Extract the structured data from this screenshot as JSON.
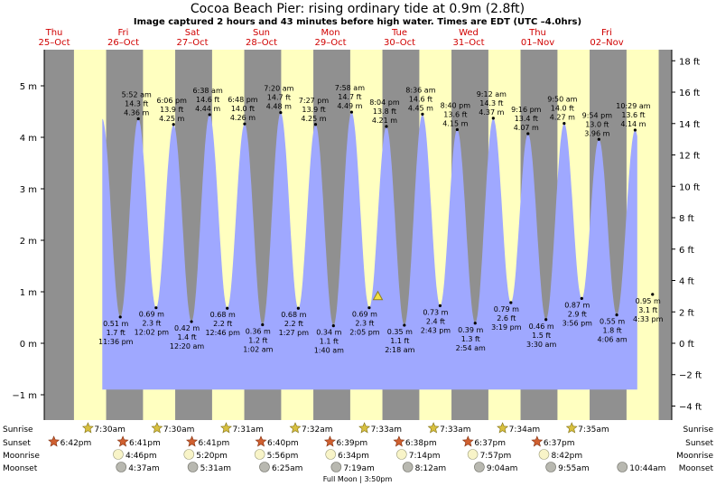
{
  "chart_data": {
    "type": "area",
    "title": "Cocoa Beach Pier: rising  ordinary tide at 0.9m (2.8ft)",
    "subtitle": "Image captured 2 hours and 43 minutes before high water. Times are EDT (UTC –4.0hrs)",
    "days": [
      {
        "dow": "Thu",
        "date": "25–Oct"
      },
      {
        "dow": "Fri",
        "date": "26–Oct"
      },
      {
        "dow": "Sat",
        "date": "27–Oct"
      },
      {
        "dow": "Sun",
        "date": "28–Oct"
      },
      {
        "dow": "Mon",
        "date": "29–Oct"
      },
      {
        "dow": "Tue",
        "date": "30–Oct"
      },
      {
        "dow": "Wed",
        "date": "31–Oct"
      },
      {
        "dow": "Thu",
        "date": "01–Nov"
      },
      {
        "dow": "Fri",
        "date": "02–Nov"
      }
    ],
    "y_left": {
      "unit": "m",
      "range": [
        -1.25,
        5.7
      ],
      "ticks": [
        "−1 m",
        "0 m",
        "1 m",
        "2 m",
        "3 m",
        "4 m",
        "5 m"
      ]
    },
    "y_right": {
      "unit": "ft",
      "ticks": [
        "−4 ft",
        "−2 ft",
        "0 ft",
        "2 ft",
        "4 ft",
        "6 ft",
        "8 ft",
        "10 ft",
        "12 ft",
        "14 ft",
        "16 ft",
        "18 ft"
      ]
    },
    "high_tides": [
      {
        "time": "5:52 am",
        "ft": "14.3 ft",
        "m": "4.36 m"
      },
      {
        "time": "6:06 pm",
        "ft": "13.9 ft",
        "m": "4.25 m"
      },
      {
        "time": "6:38 am",
        "ft": "14.6 ft",
        "m": "4.44 m"
      },
      {
        "time": "6:48 pm",
        "ft": "14.0 ft",
        "m": "4.26 m"
      },
      {
        "time": "7:20 am",
        "ft": "14.7 ft",
        "m": "4.48 m"
      },
      {
        "time": "7:27 pm",
        "ft": "13.9 ft",
        "m": "4.25 m"
      },
      {
        "time": "7:58 am",
        "ft": "14.7 ft",
        "m": "4.49 m"
      },
      {
        "time": "8:04 pm",
        "ft": "13.8 ft",
        "m": "4.21 m"
      },
      {
        "time": "8:36 am",
        "ft": "14.6 ft",
        "m": "4.45 m"
      },
      {
        "time": "8:40 pm",
        "ft": "13.6 ft",
        "m": "4.15 m"
      },
      {
        "time": "9:12 am",
        "ft": "14.3 ft",
        "m": "4.37 m"
      },
      {
        "time": "9:16 pm",
        "ft": "13.4 ft",
        "m": "4.07 m"
      },
      {
        "time": "9:50 am",
        "ft": "14.0 ft",
        "m": "4.27 m"
      },
      {
        "time": "9:54 pm",
        "ft": "13.0 ft",
        "m": "3.96 m"
      },
      {
        "time": "10:29 am",
        "ft": "13.6 ft",
        "m": "4.14 m"
      }
    ],
    "low_tides": [
      {
        "m": "0.51 m",
        "ft": "1.7 ft",
        "time": "11:36 pm"
      },
      {
        "m": "0.69 m",
        "ft": "2.3 ft",
        "time": "12:02 pm"
      },
      {
        "m": "0.42 m",
        "ft": "1.4 ft",
        "time": "12:20 am"
      },
      {
        "m": "0.68 m",
        "ft": "2.2 ft",
        "time": "12:46 pm"
      },
      {
        "m": "0.36 m",
        "ft": "1.2 ft",
        "time": "1:02 am"
      },
      {
        "m": "0.68 m",
        "ft": "2.2 ft",
        "time": "1:27 pm"
      },
      {
        "m": "0.34 m",
        "ft": "1.1 ft",
        "time": "1:40 am"
      },
      {
        "m": "0.69 m",
        "ft": "2.3 ft",
        "time": "2:05 pm"
      },
      {
        "m": "0.35 m",
        "ft": "1.1 ft",
        "time": "2:18 am"
      },
      {
        "m": "0.73 m",
        "ft": "2.4 ft",
        "time": "2:43 pm"
      },
      {
        "m": "0.39 m",
        "ft": "1.3 ft",
        "time": "2:54 am"
      },
      {
        "m": "0.79 m",
        "ft": "2.6 ft",
        "time": "3:19 pm"
      },
      {
        "m": "0.46 m",
        "ft": "1.5 ft",
        "time": "3:30 am"
      },
      {
        "m": "0.87 m",
        "ft": "2.9 ft",
        "time": "3:56 pm"
      },
      {
        "m": "0.55 m",
        "ft": "1.8 ft",
        "time": "4:06 am"
      },
      {
        "m": "0.95 m",
        "ft": "3.1 ft",
        "time": "4:33 pm"
      }
    ],
    "row_labels": [
      "Sunrise",
      "Sunset",
      "Moonrise",
      "Moonset"
    ],
    "sunrise": [
      "7:30am",
      "7:30am",
      "7:31am",
      "7:32am",
      "7:33am",
      "7:33am",
      "7:34am",
      "7:35am"
    ],
    "sunset": [
      "6:42pm",
      "6:41pm",
      "6:41pm",
      "6:40pm",
      "6:39pm",
      "6:38pm",
      "6:37pm",
      "6:37pm"
    ],
    "moonrise": [
      "4:46pm",
      "5:20pm",
      "5:56pm",
      "6:34pm",
      "7:14pm",
      "7:57pm",
      "8:42pm"
    ],
    "moonset": [
      "4:37am",
      "5:31am",
      "6:25am",
      "7:19am",
      "8:12am",
      "9:04am",
      "9:55am",
      "10:44am"
    ],
    "moon_phase": "Full Moon | 3:50pm",
    "colors": {
      "day": "#ffffc0",
      "night": "#909090",
      "water": "#9fa8ff",
      "day_label": "#d00000",
      "sun": "#d8c040",
      "sunset": "#d06030",
      "moon": "#f8f4c8",
      "moonset": "#b8b8b0"
    }
  }
}
